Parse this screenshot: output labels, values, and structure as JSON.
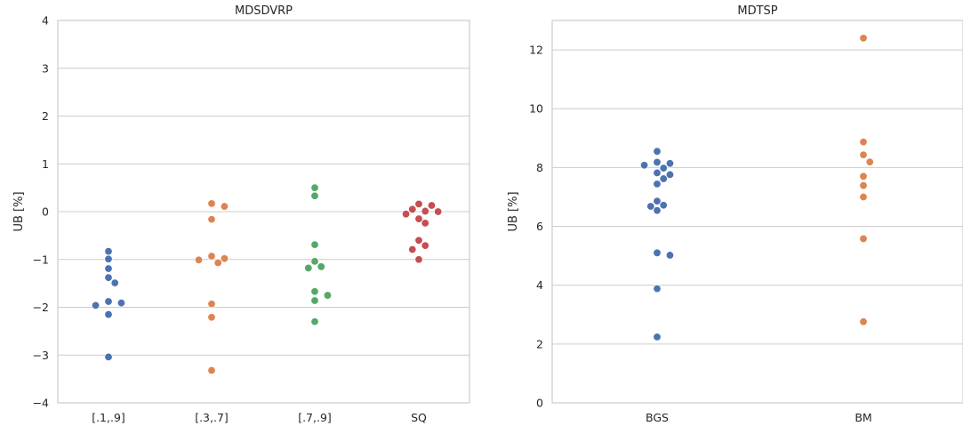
{
  "chart_data": [
    {
      "type": "scatter",
      "title": "MDSDVRP",
      "xlabel": "",
      "ylabel": "UB [%]",
      "ylim": [
        -4,
        4
      ],
      "yticks": [
        -4,
        -3,
        -2,
        -1,
        0,
        1,
        2,
        3,
        4
      ],
      "ytick_labels": [
        "−4",
        "−3",
        "−2",
        "−1",
        "0",
        "1",
        "2",
        "3",
        "4"
      ],
      "categories": [
        "[.1,.9]",
        "[.3,.7]",
        "[.7,.9]",
        "SQ"
      ],
      "colors": [
        "#4c72b0",
        "#dd8452",
        "#55a868",
        "#c44e52"
      ],
      "grid": true,
      "series": [
        {
          "category": "[.1,.9]",
          "values": [
            -0.83,
            -0.99,
            -1.19,
            -1.38,
            -1.49,
            -1.88,
            -1.91,
            -1.96,
            -2.15,
            -3.04
          ]
        },
        {
          "category": "[.3,.7]",
          "values": [
            0.17,
            0.11,
            -0.16,
            -0.93,
            -0.98,
            -1.01,
            -1.07,
            -1.93,
            -2.21,
            -3.32
          ]
        },
        {
          "category": "[.7,.9]",
          "values": [
            0.5,
            0.33,
            -0.69,
            -1.04,
            -1.15,
            -1.18,
            -1.67,
            -1.75,
            -1.86,
            -2.3
          ]
        },
        {
          "category": "SQ",
          "values": [
            0.16,
            0.13,
            0.05,
            0.01,
            0.0,
            -0.05,
            -0.15,
            -0.24,
            -0.6,
            -0.71,
            -0.79,
            -1.0
          ]
        }
      ]
    },
    {
      "type": "scatter",
      "title": "MDTSP",
      "xlabel": "",
      "ylabel": "UB [%]",
      "ylim": [
        0,
        13
      ],
      "yticks": [
        0,
        2,
        4,
        6,
        8,
        10,
        12
      ],
      "ytick_labels": [
        "0",
        "2",
        "4",
        "6",
        "8",
        "10",
        "12"
      ],
      "categories": [
        "BGS",
        "BM"
      ],
      "colors": [
        "#4c72b0",
        "#dd8452"
      ],
      "grid": true,
      "series": [
        {
          "category": "BGS",
          "values": [
            8.55,
            8.18,
            8.14,
            8.08,
            7.98,
            7.82,
            7.76,
            7.62,
            7.44,
            6.86,
            6.72,
            6.68,
            6.54,
            5.1,
            5.02,
            3.88,
            2.24
          ]
        },
        {
          "category": "BM",
          "values": [
            12.4,
            8.87,
            8.43,
            8.19,
            7.7,
            7.39,
            7.0,
            5.58,
            2.76
          ]
        }
      ]
    }
  ]
}
